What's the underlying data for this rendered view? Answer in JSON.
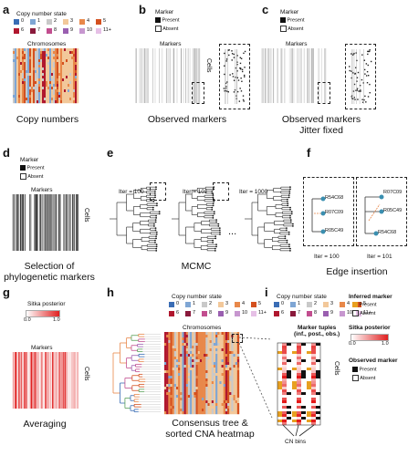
{
  "panels": {
    "a": {
      "label": "a",
      "legend_title": "Copy number state",
      "legend_row1": [
        "0",
        "1",
        "2",
        "3",
        "4",
        "5"
      ],
      "legend_row2": [
        "6",
        "7",
        "8",
        "9",
        "10",
        "11+"
      ],
      "heatmap_title": "Chromosomes",
      "caption": "Copy numbers"
    },
    "b": {
      "label": "b",
      "legend_title": "Marker",
      "present": "Present",
      "absent": "Absent",
      "heatmap_title": "Markers",
      "cells": "Cells",
      "caption": "Observed markers"
    },
    "c": {
      "label": "c",
      "legend_title": "Marker",
      "present": "Present",
      "absent": "Absent",
      "heatmap_title": "Markers",
      "cells": "Cells",
      "caption_line1": "Observed markers",
      "caption_line2": "Jitter fixed"
    },
    "d": {
      "label": "d",
      "legend_title": "Marker",
      "present": "Present",
      "absent": "Absent",
      "heatmap_title": "Markers",
      "cells": "Cells",
      "caption_line1": "Selection of",
      "caption_line2": "phylogenetic markers"
    },
    "e": {
      "label": "e",
      "iter1": "Iter = 100",
      "iter2": "Iter = 101",
      "iter3": "Iter = 1000",
      "ellipsis": "...",
      "caption": "MCMC"
    },
    "f": {
      "label": "f",
      "left_nodes": [
        "R54C68",
        "R07C09",
        "R05C49"
      ],
      "right_nodes": [
        "R07C09",
        "R05C49",
        "R54C68"
      ],
      "left_iter": "Iter = 100",
      "right_iter": "Iter = 101",
      "caption": "Edge insertion"
    },
    "g": {
      "label": "g",
      "legend_title": "Sitka posterior",
      "scale_min": "0.0",
      "scale_max": "1.0",
      "heatmap_title": "Markers",
      "cells": "Cells",
      "caption": "Averaging"
    },
    "h": {
      "label": "h",
      "legend_title": "Copy number state",
      "legend_row1": [
        "0",
        "1",
        "2",
        "3",
        "4",
        "5"
      ],
      "legend_row2": [
        "6",
        "7",
        "8",
        "9",
        "10",
        "11+"
      ],
      "heatmap_title": "Chromosomes",
      "caption_line1": "Consensus tree &",
      "caption_line2": "sorted CNA heatmap"
    },
    "i": {
      "label": "i",
      "legend_title": "Copy number state",
      "legend_row1": [
        "0",
        "1",
        "2",
        "3",
        "4",
        "5"
      ],
      "legend_row2": [
        "6",
        "7",
        "8",
        "9",
        "10",
        "11+"
      ],
      "inferred_title": "Inferred marker",
      "present": "Present",
      "absent": "Absent",
      "sitka_title": "Sitka posterior",
      "scale_min": "0.0",
      "scale_max": "1.0",
      "observed_title": "Observed marker",
      "tuples_line1": "Marker tuples",
      "tuples_line2": "(inf., post., obs.)",
      "cells": "Cells",
      "cn_bins": "CN bins"
    }
  },
  "colors": {
    "cn": [
      "#3a6db5",
      "#7fa6d4",
      "#c9c9c9",
      "#f2c89a",
      "#e8884a",
      "#d4501f",
      "#b0172e",
      "#8a1a3c",
      "#c24e8f",
      "#9a5fb0",
      "#c797cf",
      "#e6c0e6"
    ],
    "marker_present": "#111111",
    "marker_absent": "#ffffff",
    "posterior_low": "#ffffff",
    "posterior_high": "#e02020",
    "inferred_present": "#e8a020"
  }
}
